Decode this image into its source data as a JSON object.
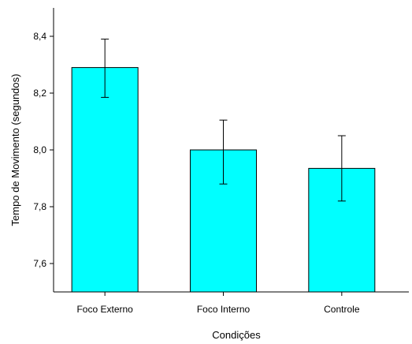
{
  "chart_data": {
    "type": "bar",
    "title": "",
    "xlabel": "Condições",
    "ylabel": "Tempo de Movimento (segundos)",
    "categories": [
      "Foco Externo",
      "Foco Interno",
      "Controle"
    ],
    "values": [
      8.29,
      8.0,
      7.935
    ],
    "error_low": [
      8.185,
      7.88,
      7.82
    ],
    "error_high": [
      8.39,
      8.105,
      8.05
    ],
    "ylim": [
      7.5,
      8.5
    ],
    "yticks": [
      "7,6",
      "7,8",
      "8,0",
      "8,2",
      "8,4"
    ],
    "ytick_values": [
      7.6,
      7.8,
      8.0,
      8.2,
      8.4
    ],
    "bar_color": "#00ffff",
    "grid": false
  }
}
